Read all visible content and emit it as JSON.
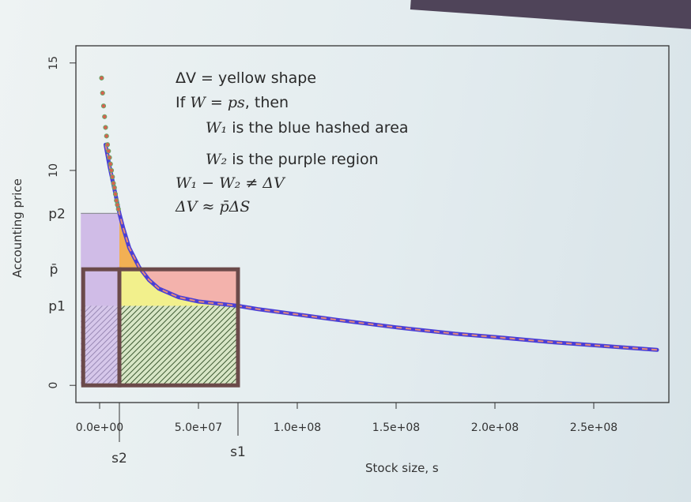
{
  "chart_data": {
    "type": "line",
    "xlabel": "Stock size, s",
    "ylabel": "Accounting price",
    "xlim": [
      -12000000.0,
      288000000.0
    ],
    "ylim": [
      -0.8,
      15.8
    ],
    "x_tick_labels": [
      {
        "value": 0,
        "label": "0.0e+00"
      },
      {
        "value": 50000000,
        "label": "5.0e+07"
      },
      {
        "value": 100000000,
        "label": "1.0e+08"
      },
      {
        "value": 150000000,
        "label": "1.5e+08"
      },
      {
        "value": 200000000,
        "label": "2.0e+08"
      },
      {
        "value": 250000000,
        "label": "2.5e+08"
      }
    ],
    "y_tick_labels": [
      {
        "value": 0,
        "label": "0"
      },
      {
        "value": 10,
        "label": "10"
      },
      {
        "value": 15,
        "label": "15"
      }
    ],
    "marked_points": {
      "s2": {
        "label": "s2",
        "value": 10000000
      },
      "s1": {
        "label": "s1",
        "value": 70000000
      },
      "p2": {
        "label": "p2",
        "value": 8.0
      },
      "p1": {
        "label": "p1",
        "value": 3.7
      },
      "pbar": {
        "label": "p̄",
        "value": 5.4
      }
    },
    "series": [
      {
        "color": "#4a3fd6",
        "dashed_overlay_color": "#e58a7a",
        "x": [
          3000000,
          5000000,
          8000000,
          10000000,
          12000000,
          15000000,
          20000000,
          25000000,
          30000000,
          40000000,
          50000000,
          60000000,
          70000000,
          80000000,
          100000000,
          120000000,
          150000000,
          180000000,
          200000000,
          230000000,
          260000000,
          282000000
        ],
        "y": [
          11.2,
          10.2,
          8.9,
          8.0,
          7.3,
          6.4,
          5.5,
          4.9,
          4.5,
          4.1,
          3.9,
          3.8,
          3.7,
          3.55,
          3.3,
          3.05,
          2.7,
          2.4,
          2.25,
          2.0,
          1.8,
          1.65
        ]
      }
    ],
    "early_points": {
      "color": "#d9604f",
      "x": [
        1000000,
        1500000,
        2000000,
        2500000,
        3000000,
        3500000,
        4000000,
        4500000,
        5000000,
        5500000,
        6000000,
        6500000,
        7000000,
        7500000,
        8000000,
        8500000,
        9000000,
        9500000
      ],
      "y": [
        14.3,
        13.6,
        13.0,
        12.5,
        12.0,
        11.6,
        11.2,
        10.9,
        10.6,
        10.3,
        10.0,
        9.7,
        9.4,
        9.2,
        8.9,
        8.6,
        8.4,
        8.2
      ]
    },
    "regions": [
      {
        "name": "yellow shape",
        "color": "#f2f08c"
      },
      {
        "name": "blue hashed area",
        "color": "#4a7a3a"
      },
      {
        "name": "purple region",
        "color": "#cdb6e6"
      },
      {
        "name": "orange region",
        "color": "#f3a842"
      },
      {
        "name": "salmon region",
        "color": "#f4a7a0"
      },
      {
        "name": "box frame",
        "color": "#6b4a4a"
      }
    ],
    "annotations": [
      {
        "lead": "ΔV",
        "rest": " = yellow shape"
      },
      {
        "lead": "If ",
        "math": "W = ps",
        "rest": ", then"
      },
      {
        "math": "W₁",
        "rest": " is the blue hashed area"
      },
      {
        "math": "W₂",
        "rest": " is the purple region"
      },
      {
        "math": "W₁ − W₂ ≠ ΔV"
      },
      {
        "math": "ΔV ≈ p̄ΔS"
      }
    ],
    "grid": false
  }
}
